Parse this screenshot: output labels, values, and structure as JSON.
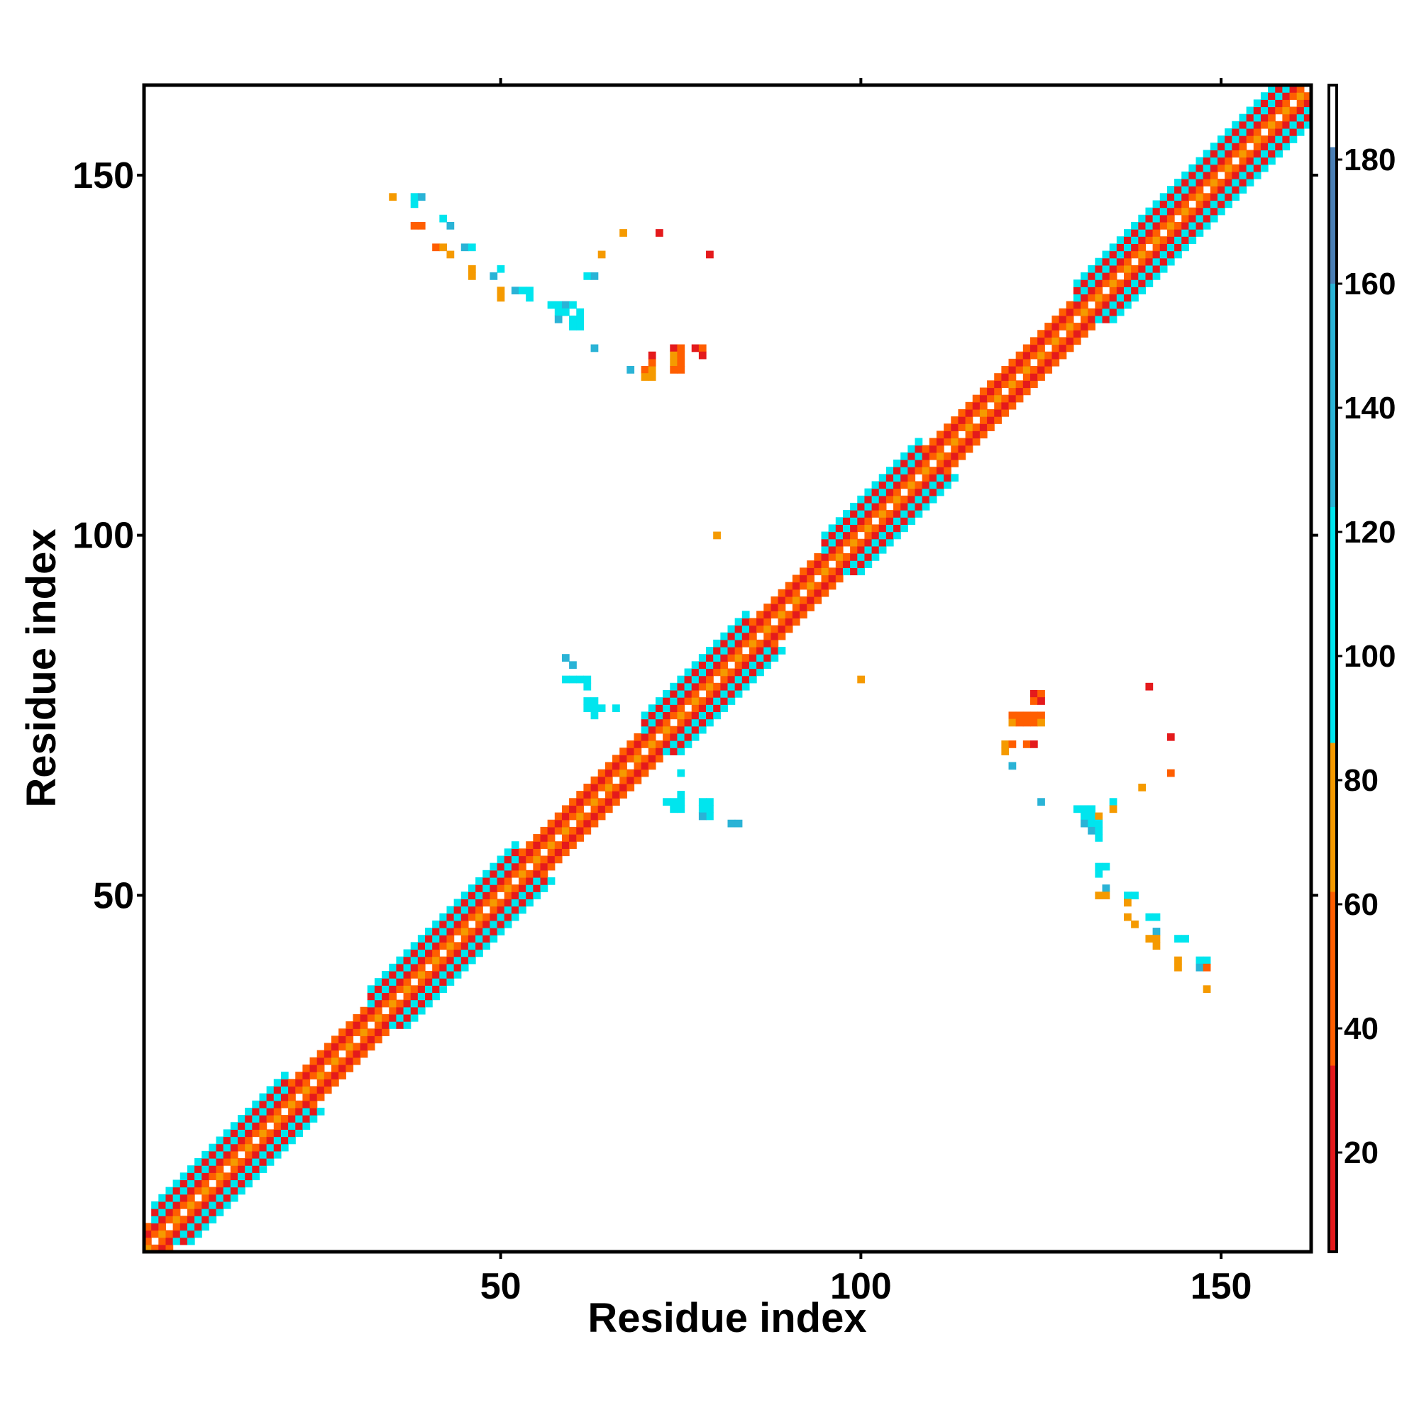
{
  "chart_data": {
    "type": "heatmap",
    "xlabel": "Residue index",
    "ylabel": "Residue index",
    "xlim": [
      0.5,
      162.5
    ],
    "ylim": [
      0.5,
      162.5
    ],
    "x_ticks": [
      "50",
      "100",
      "150"
    ],
    "y_ticks": [
      "50",
      "100",
      "150"
    ],
    "colorbar": {
      "range": [
        4,
        192
      ],
      "ticks": [
        "20",
        "40",
        "60",
        "80",
        "100",
        "120",
        "140",
        "160",
        "180"
      ],
      "segments": [
        {
          "from": 4,
          "to": 34,
          "color": "#e41a1c"
        },
        {
          "from": 34,
          "to": 62,
          "color": "#ff5e00"
        },
        {
          "from": 62,
          "to": 86,
          "color": "#f59a00"
        },
        {
          "from": 86,
          "to": 124,
          "color": "#00e5ee"
        },
        {
          "from": 124,
          "to": 160,
          "color": "#2ab3d6"
        },
        {
          "from": 160,
          "to": 182,
          "color": "#4a7fb5"
        },
        {
          "from": 182,
          "to": 192,
          "color": "#ffffff"
        }
      ]
    },
    "diagonal": {
      "n": 162,
      "helices": [
        [
          2,
          20
        ],
        [
          32,
          52
        ],
        [
          70,
          84
        ],
        [
          95,
          108
        ],
        [
          130,
          160
        ]
      ],
      "note_colors": {
        "red": 25,
        "orange": 50,
        "amber": 75,
        "cyan": 100
      }
    },
    "contacts": [
      {
        "x": 35,
        "y": 147,
        "v": 75
      },
      {
        "x": 38,
        "y": 147,
        "v": 100
      },
      {
        "x": 39,
        "y": 147,
        "v": 140
      },
      {
        "x": 38,
        "y": 146,
        "v": 100
      },
      {
        "x": 38,
        "y": 143,
        "v": 50
      },
      {
        "x": 39,
        "y": 143,
        "v": 50
      },
      {
        "x": 42,
        "y": 144,
        "v": 100
      },
      {
        "x": 43,
        "y": 143,
        "v": 140
      },
      {
        "x": 41,
        "y": 140,
        "v": 50
      },
      {
        "x": 42,
        "y": 140,
        "v": 75
      },
      {
        "x": 43,
        "y": 139,
        "v": 75
      },
      {
        "x": 45,
        "y": 140,
        "v": 140
      },
      {
        "x": 46,
        "y": 140,
        "v": 100
      },
      {
        "x": 46,
        "y": 137,
        "v": 75
      },
      {
        "x": 46,
        "y": 136,
        "v": 75
      },
      {
        "x": 49,
        "y": 136,
        "v": 140
      },
      {
        "x": 50,
        "y": 137,
        "v": 100
      },
      {
        "x": 50,
        "y": 134,
        "v": 75
      },
      {
        "x": 50,
        "y": 133,
        "v": 75
      },
      {
        "x": 52,
        "y": 134,
        "v": 140
      },
      {
        "x": 53,
        "y": 134,
        "v": 100
      },
      {
        "x": 54,
        "y": 134,
        "v": 100
      },
      {
        "x": 54,
        "y": 133,
        "v": 100
      },
      {
        "x": 57,
        "y": 132,
        "v": 100
      },
      {
        "x": 58,
        "y": 132,
        "v": 100
      },
      {
        "x": 59,
        "y": 132,
        "v": 140
      },
      {
        "x": 60,
        "y": 132,
        "v": 100
      },
      {
        "x": 58,
        "y": 131,
        "v": 100
      },
      {
        "x": 59,
        "y": 131,
        "v": 100
      },
      {
        "x": 58,
        "y": 130,
        "v": 140
      },
      {
        "x": 60,
        "y": 130,
        "v": 100
      },
      {
        "x": 61,
        "y": 130,
        "v": 100
      },
      {
        "x": 60,
        "y": 129,
        "v": 100
      },
      {
        "x": 61,
        "y": 129,
        "v": 100
      },
      {
        "x": 61,
        "y": 131,
        "v": 100
      },
      {
        "x": 62,
        "y": 136,
        "v": 100
      },
      {
        "x": 63,
        "y": 136,
        "v": 140
      },
      {
        "x": 64,
        "y": 139,
        "v": 75
      },
      {
        "x": 67,
        "y": 142,
        "v": 75
      },
      {
        "x": 72,
        "y": 142,
        "v": 25
      },
      {
        "x": 79,
        "y": 139,
        "v": 25
      },
      {
        "x": 63,
        "y": 126,
        "v": 140
      },
      {
        "x": 68,
        "y": 123,
        "v": 140
      },
      {
        "x": 70,
        "y": 123,
        "v": 50
      },
      {
        "x": 71,
        "y": 123,
        "v": 75
      },
      {
        "x": 70,
        "y": 122,
        "v": 75
      },
      {
        "x": 71,
        "y": 122,
        "v": 75
      },
      {
        "x": 71,
        "y": 124,
        "v": 50
      },
      {
        "x": 71,
        "y": 125,
        "v": 25
      },
      {
        "x": 74,
        "y": 126,
        "v": 25
      },
      {
        "x": 75,
        "y": 126,
        "v": 50
      },
      {
        "x": 74,
        "y": 125,
        "v": 75
      },
      {
        "x": 75,
        "y": 125,
        "v": 50
      },
      {
        "x": 74,
        "y": 124,
        "v": 75
      },
      {
        "x": 75,
        "y": 124,
        "v": 50
      },
      {
        "x": 74,
        "y": 123,
        "v": 50
      },
      {
        "x": 75,
        "y": 123,
        "v": 50
      },
      {
        "x": 77,
        "y": 126,
        "v": 25
      },
      {
        "x": 78,
        "y": 126,
        "v": 50
      },
      {
        "x": 78,
        "y": 125,
        "v": 25
      },
      {
        "x": 80,
        "y": 100,
        "v": 75
      },
      {
        "x": 59,
        "y": 83,
        "v": 140
      },
      {
        "x": 60,
        "y": 82,
        "v": 140
      },
      {
        "x": 59,
        "y": 80,
        "v": 100
      },
      {
        "x": 60,
        "y": 80,
        "v": 100
      },
      {
        "x": 61,
        "y": 80,
        "v": 100
      },
      {
        "x": 62,
        "y": 80,
        "v": 100
      },
      {
        "x": 62,
        "y": 79,
        "v": 100
      },
      {
        "x": 62,
        "y": 77,
        "v": 100
      },
      {
        "x": 63,
        "y": 77,
        "v": 100
      },
      {
        "x": 62,
        "y": 76,
        "v": 100
      },
      {
        "x": 63,
        "y": 76,
        "v": 100
      },
      {
        "x": 64,
        "y": 76,
        "v": 100
      },
      {
        "x": 63,
        "y": 75,
        "v": 100
      },
      {
        "x": 66,
        "y": 76,
        "v": 100
      },
      {
        "x": 75,
        "y": 67,
        "v": 100
      },
      {
        "x": 74,
        "y": 63,
        "v": 100
      },
      {
        "x": 75,
        "y": 63,
        "v": 100
      },
      {
        "x": 74,
        "y": 62,
        "v": 100
      },
      {
        "x": 75,
        "y": 62,
        "v": 100
      },
      {
        "x": 75,
        "y": 64,
        "v": 100
      },
      {
        "x": 73,
        "y": 63,
        "v": 100
      },
      {
        "x": 78,
        "y": 63,
        "v": 100
      },
      {
        "x": 79,
        "y": 63,
        "v": 100
      },
      {
        "x": 78,
        "y": 62,
        "v": 100
      },
      {
        "x": 79,
        "y": 62,
        "v": 100
      },
      {
        "x": 79,
        "y": 61,
        "v": 100
      },
      {
        "x": 78,
        "y": 61,
        "v": 140
      },
      {
        "x": 82,
        "y": 60,
        "v": 140
      },
      {
        "x": 83,
        "y": 60,
        "v": 140
      },
      {
        "x": 100,
        "y": 80,
        "v": 75
      },
      {
        "x": 124,
        "y": 78,
        "v": 25
      },
      {
        "x": 125,
        "y": 78,
        "v": 50
      },
      {
        "x": 124,
        "y": 77,
        "v": 50
      },
      {
        "x": 125,
        "y": 77,
        "v": 25
      },
      {
        "x": 121,
        "y": 75,
        "v": 50
      },
      {
        "x": 122,
        "y": 75,
        "v": 50
      },
      {
        "x": 123,
        "y": 75,
        "v": 50
      },
      {
        "x": 124,
        "y": 75,
        "v": 50
      },
      {
        "x": 125,
        "y": 75,
        "v": 50
      },
      {
        "x": 121,
        "y": 74,
        "v": 75
      },
      {
        "x": 122,
        "y": 74,
        "v": 50
      },
      {
        "x": 123,
        "y": 74,
        "v": 50
      },
      {
        "x": 124,
        "y": 74,
        "v": 50
      },
      {
        "x": 125,
        "y": 74,
        "v": 75
      },
      {
        "x": 120,
        "y": 71,
        "v": 75
      },
      {
        "x": 121,
        "y": 71,
        "v": 50
      },
      {
        "x": 123,
        "y": 71,
        "v": 50
      },
      {
        "x": 124,
        "y": 71,
        "v": 25
      },
      {
        "x": 120,
        "y": 70,
        "v": 75
      },
      {
        "x": 121,
        "y": 68,
        "v": 140
      },
      {
        "x": 140,
        "y": 79,
        "v": 25
      },
      {
        "x": 143,
        "y": 72,
        "v": 25
      },
      {
        "x": 143,
        "y": 67,
        "v": 50
      },
      {
        "x": 139,
        "y": 65,
        "v": 75
      },
      {
        "x": 135,
        "y": 63,
        "v": 100
      },
      {
        "x": 135,
        "y": 62,
        "v": 75
      },
      {
        "x": 125,
        "y": 63,
        "v": 140
      },
      {
        "x": 130,
        "y": 62,
        "v": 100
      },
      {
        "x": 131,
        "y": 62,
        "v": 100
      },
      {
        "x": 132,
        "y": 62,
        "v": 100
      },
      {
        "x": 131,
        "y": 61,
        "v": 100
      },
      {
        "x": 132,
        "y": 61,
        "v": 100
      },
      {
        "x": 133,
        "y": 61,
        "v": 75
      },
      {
        "x": 131,
        "y": 60,
        "v": 140
      },
      {
        "x": 132,
        "y": 60,
        "v": 100
      },
      {
        "x": 133,
        "y": 60,
        "v": 100
      },
      {
        "x": 132,
        "y": 59,
        "v": 140
      },
      {
        "x": 133,
        "y": 59,
        "v": 100
      },
      {
        "x": 133,
        "y": 58,
        "v": 100
      },
      {
        "x": 133,
        "y": 54,
        "v": 100
      },
      {
        "x": 134,
        "y": 54,
        "v": 100
      },
      {
        "x": 133,
        "y": 53,
        "v": 100
      },
      {
        "x": 134,
        "y": 51,
        "v": 140
      },
      {
        "x": 133,
        "y": 50,
        "v": 75
      },
      {
        "x": 134,
        "y": 50,
        "v": 75
      },
      {
        "x": 137,
        "y": 50,
        "v": 100
      },
      {
        "x": 138,
        "y": 50,
        "v": 100
      },
      {
        "x": 137,
        "y": 49,
        "v": 75
      },
      {
        "x": 137,
        "y": 47,
        "v": 75
      },
      {
        "x": 138,
        "y": 46,
        "v": 75
      },
      {
        "x": 140,
        "y": 47,
        "v": 100
      },
      {
        "x": 141,
        "y": 47,
        "v": 100
      },
      {
        "x": 141,
        "y": 45,
        "v": 140
      },
      {
        "x": 140,
        "y": 44,
        "v": 75
      },
      {
        "x": 141,
        "y": 44,
        "v": 75
      },
      {
        "x": 141,
        "y": 43,
        "v": 75
      },
      {
        "x": 144,
        "y": 44,
        "v": 100
      },
      {
        "x": 145,
        "y": 44,
        "v": 100
      },
      {
        "x": 144,
        "y": 41,
        "v": 75
      },
      {
        "x": 144,
        "y": 40,
        "v": 75
      },
      {
        "x": 147,
        "y": 41,
        "v": 100
      },
      {
        "x": 148,
        "y": 41,
        "v": 100
      },
      {
        "x": 147,
        "y": 40,
        "v": 140
      },
      {
        "x": 148,
        "y": 40,
        "v": 50
      },
      {
        "x": 148,
        "y": 37,
        "v": 75
      }
    ]
  }
}
